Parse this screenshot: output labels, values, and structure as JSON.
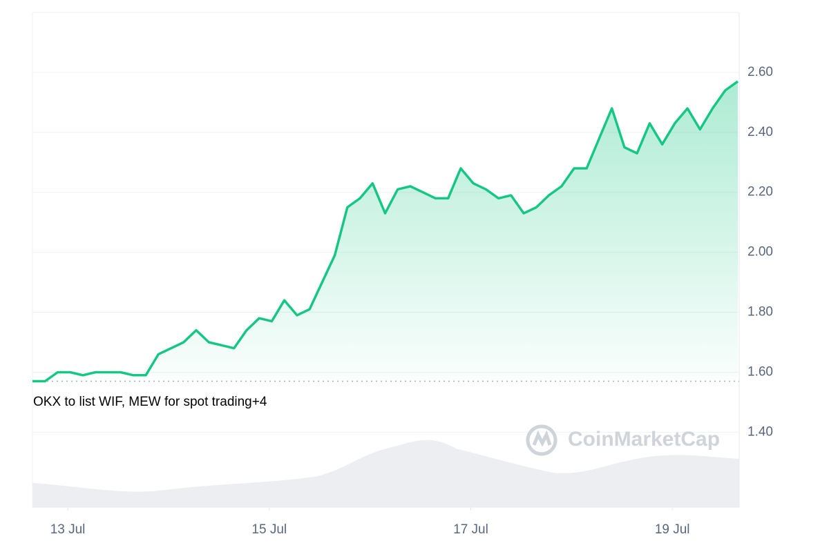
{
  "chart_data": {
    "type": "line",
    "values": [
      1.57,
      1.57,
      1.6,
      1.6,
      1.59,
      1.6,
      1.6,
      1.6,
      1.59,
      1.59,
      1.66,
      1.68,
      1.7,
      1.74,
      1.7,
      1.69,
      1.68,
      1.74,
      1.78,
      1.77,
      1.84,
      1.79,
      1.81,
      1.9,
      1.99,
      2.15,
      2.18,
      2.23,
      2.13,
      2.21,
      2.22,
      2.2,
      2.18,
      2.18,
      2.28,
      2.23,
      2.21,
      2.18,
      2.19,
      2.13,
      2.15,
      2.19,
      2.22,
      2.28,
      2.28,
      2.38,
      2.48,
      2.35,
      2.33,
      2.43,
      2.36,
      2.43,
      2.48,
      2.41,
      2.48,
      2.54,
      2.57
    ],
    "color": "#16c784",
    "xlim": [
      0,
      56
    ],
    "xticks": [
      {
        "value": 2.8,
        "label": "13 Jul"
      },
      {
        "value": 18.8,
        "label": "15 Jul"
      },
      {
        "value": 34.8,
        "label": "17 Jul"
      },
      {
        "value": 50.8,
        "label": "19 Jul"
      }
    ],
    "ylim": [
      1.15,
      2.8
    ],
    "yticks": [
      {
        "value": 1.4,
        "label": "1.40"
      },
      {
        "value": 1.6,
        "label": "1.60"
      },
      {
        "value": 1.8,
        "label": "1.80"
      },
      {
        "value": 2.0,
        "label": "2.00"
      },
      {
        "value": 2.2,
        "label": "2.20"
      },
      {
        "value": 2.4,
        "label": "2.40"
      },
      {
        "value": 2.6,
        "label": "2.60"
      }
    ],
    "reference_line": 1.57,
    "grid": true,
    "annotation": "OKX to list WIF, MEW for spot trading+4",
    "watermark": "CoinMarketCap"
  }
}
